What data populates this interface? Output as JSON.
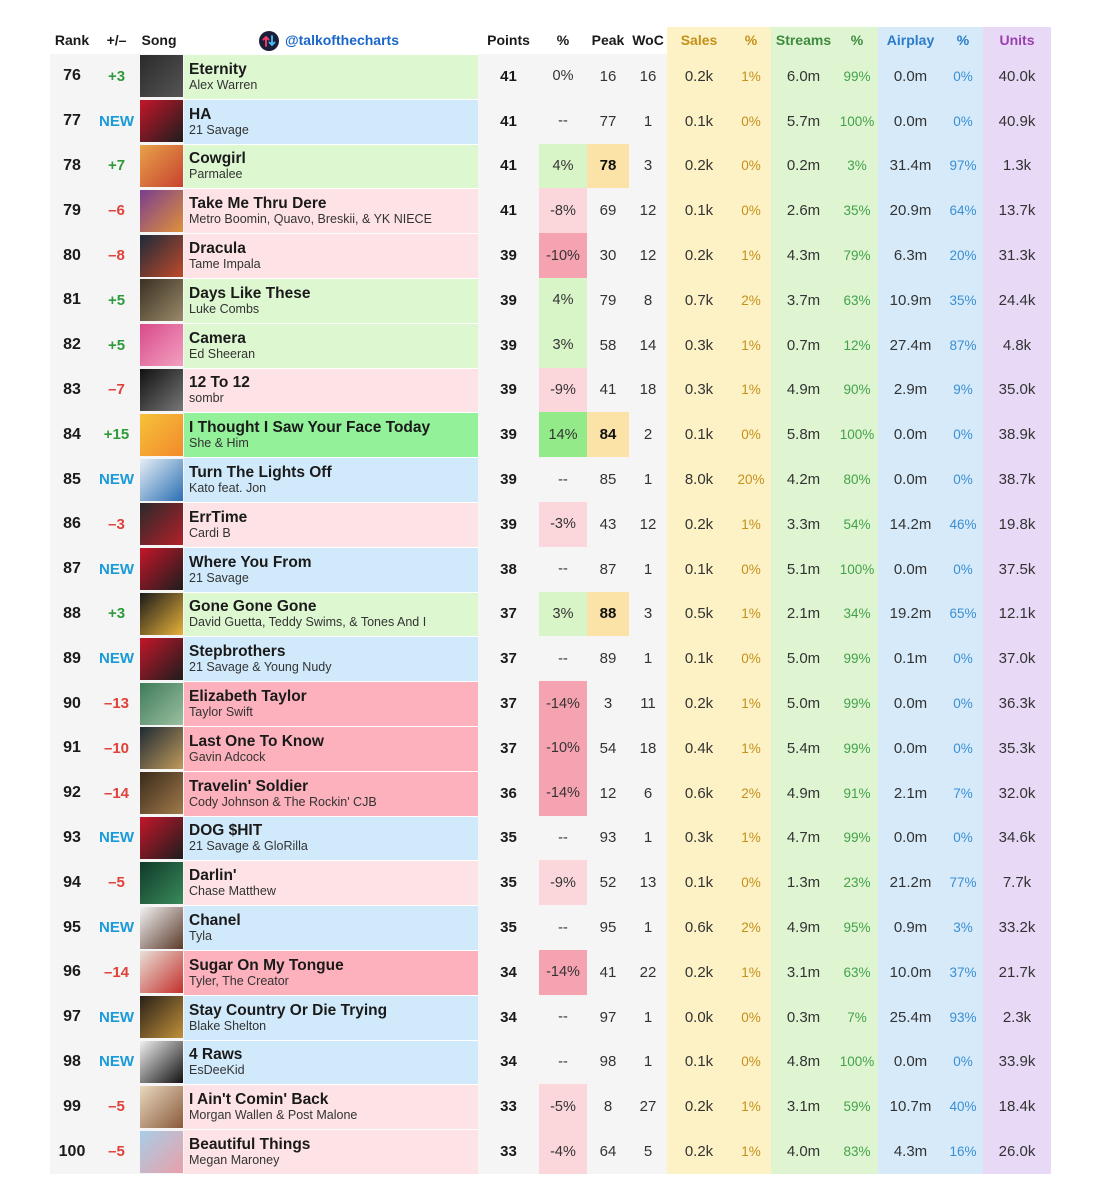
{
  "header": {
    "rank": "Rank",
    "move": "+/–",
    "song": "Song",
    "handle": "@talkofthecharts",
    "points": "Points",
    "pct": "%",
    "peak": "Peak",
    "woc": "WoC",
    "sales": "Sales",
    "sales_pct": "%",
    "streams": "Streams",
    "streams_pct": "%",
    "airplay": "Airplay",
    "airplay_pct": "%",
    "units": "Units"
  },
  "colors": {
    "song_up": "#ddf7d1",
    "song_new": "#d1eafb",
    "song_down": "#fde3e5",
    "song_big_up": "#93f19a",
    "song_big_down": "#fcb1bc",
    "pct_up": "#d7f5c7",
    "pct_up_strong": "#92ea88",
    "pct_down": "#fbd7dc",
    "pct_down_strong": "#f6a3b1",
    "move_up": "#2e9a3b",
    "move_down": "#e0413a",
    "move_new": "#1a9ad8",
    "peak_highlight": "#fbe2a6",
    "sales_bg": "#fdf2c6",
    "streams_bg": "#dff5d2",
    "airplay_bg": "#d6eafa",
    "units_bg": "#e8d9f7"
  },
  "chart_data": {
    "type": "table",
    "title": "",
    "columns": [
      "Rank",
      "+/–",
      "Song",
      "Points",
      "%",
      "Peak",
      "WoC",
      "Sales",
      "%",
      "Streams",
      "%",
      "Airplay",
      "%",
      "Units"
    ],
    "rows": [
      {
        "rank": "76",
        "move": "+3",
        "title": "Eternity",
        "artist": "Alex Warren",
        "points": "41",
        "pct": "0%",
        "peak": "16",
        "woc": "16",
        "sales": "0.2k",
        "sales_pct": "1%",
        "streams": "6.0m",
        "streams_pct": "99%",
        "airplay": "0.0m",
        "airplay_pct": "0%",
        "units": "40.0k",
        "song_tone": "up",
        "pct_tone": "none",
        "peak_hl": false,
        "art": [
          "#2a2a2a",
          "#555"
        ]
      },
      {
        "rank": "77",
        "move": "NEW",
        "title": "HA",
        "artist": "21 Savage",
        "points": "41",
        "pct": "--",
        "peak": "77",
        "woc": "1",
        "sales": "0.1k",
        "sales_pct": "0%",
        "streams": "5.7m",
        "streams_pct": "100%",
        "airplay": "0.0m",
        "airplay_pct": "0%",
        "units": "40.9k",
        "song_tone": "new",
        "pct_tone": "none",
        "peak_hl": false,
        "art": [
          "#c4162a",
          "#1d1d1d"
        ]
      },
      {
        "rank": "78",
        "move": "+7",
        "title": "Cowgirl",
        "artist": "Parmalee",
        "points": "41",
        "pct": "4%",
        "peak": "78",
        "woc": "3",
        "sales": "0.2k",
        "sales_pct": "0%",
        "streams": "0.2m",
        "streams_pct": "3%",
        "airplay": "31.4m",
        "airplay_pct": "97%",
        "units": "1.3k",
        "song_tone": "up",
        "pct_tone": "up",
        "peak_hl": true,
        "art": [
          "#e8a24a",
          "#c7422e"
        ]
      },
      {
        "rank": "79",
        "move": "–6",
        "title": "Take Me Thru Dere",
        "artist": "Metro Boomin, Quavo, Breskii, & YK NIECE",
        "points": "41",
        "pct": "-8%",
        "peak": "69",
        "woc": "12",
        "sales": "0.1k",
        "sales_pct": "0%",
        "streams": "2.6m",
        "streams_pct": "35%",
        "airplay": "20.9m",
        "airplay_pct": "64%",
        "units": "13.7k",
        "song_tone": "down",
        "pct_tone": "down",
        "peak_hl": false,
        "art": [
          "#7a3d8f",
          "#e0913a"
        ]
      },
      {
        "rank": "80",
        "move": "–8",
        "title": "Dracula",
        "artist": "Tame Impala",
        "points": "39",
        "pct": "-10%",
        "peak": "30",
        "woc": "12",
        "sales": "0.2k",
        "sales_pct": "1%",
        "streams": "4.3m",
        "streams_pct": "79%",
        "airplay": "6.3m",
        "airplay_pct": "20%",
        "units": "31.3k",
        "song_tone": "down",
        "pct_tone": "down_strong",
        "peak_hl": false,
        "art": [
          "#1c2a3a",
          "#c04a2a"
        ]
      },
      {
        "rank": "81",
        "move": "+5",
        "title": "Days Like These",
        "artist": "Luke Combs",
        "points": "39",
        "pct": "4%",
        "peak": "79",
        "woc": "8",
        "sales": "0.7k",
        "sales_pct": "2%",
        "streams": "3.7m",
        "streams_pct": "63%",
        "airplay": "10.9m",
        "airplay_pct": "35%",
        "units": "24.4k",
        "song_tone": "up",
        "pct_tone": "up",
        "peak_hl": false,
        "art": [
          "#3a3022",
          "#9a8a6a"
        ]
      },
      {
        "rank": "82",
        "move": "+5",
        "title": "Camera",
        "artist": "Ed Sheeran",
        "points": "39",
        "pct": "3%",
        "peak": "58",
        "woc": "14",
        "sales": "0.3k",
        "sales_pct": "1%",
        "streams": "0.7m",
        "streams_pct": "12%",
        "airplay": "27.4m",
        "airplay_pct": "87%",
        "units": "4.8k",
        "song_tone": "up",
        "pct_tone": "up",
        "peak_hl": false,
        "art": [
          "#d94a8a",
          "#f2a0c0"
        ]
      },
      {
        "rank": "83",
        "move": "–7",
        "title": "12 To 12",
        "artist": "sombr",
        "points": "39",
        "pct": "-9%",
        "peak": "41",
        "woc": "18",
        "sales": "0.3k",
        "sales_pct": "1%",
        "streams": "4.9m",
        "streams_pct": "90%",
        "airplay": "2.9m",
        "airplay_pct": "9%",
        "units": "35.0k",
        "song_tone": "down",
        "pct_tone": "down",
        "peak_hl": false,
        "art": [
          "#111111",
          "#777777"
        ]
      },
      {
        "rank": "84",
        "move": "+15",
        "title": "I Thought I Saw Your Face Today",
        "artist": "She & Him",
        "points": "39",
        "pct": "14%",
        "peak": "84",
        "woc": "2",
        "sales": "0.1k",
        "sales_pct": "0%",
        "streams": "5.8m",
        "streams_pct": "100%",
        "airplay": "0.0m",
        "airplay_pct": "0%",
        "units": "38.9k",
        "song_tone": "big_up",
        "pct_tone": "up_strong",
        "peak_hl": true,
        "art": [
          "#f5c23a",
          "#f28a2a"
        ]
      },
      {
        "rank": "85",
        "move": "NEW",
        "title": "Turn The Lights Off",
        "artist": "Kato feat. Jon",
        "points": "39",
        "pct": "--",
        "peak": "85",
        "woc": "1",
        "sales": "8.0k",
        "sales_pct": "20%",
        "streams": "4.2m",
        "streams_pct": "80%",
        "airplay": "0.0m",
        "airplay_pct": "0%",
        "units": "38.7k",
        "song_tone": "new",
        "pct_tone": "none",
        "peak_hl": false,
        "art": [
          "#e6eef5",
          "#2a6fb3"
        ]
      },
      {
        "rank": "86",
        "move": "–3",
        "title": "ErrTime",
        "artist": "Cardi B",
        "points": "39",
        "pct": "-3%",
        "peak": "43",
        "woc": "12",
        "sales": "0.2k",
        "sales_pct": "1%",
        "streams": "3.3m",
        "streams_pct": "54%",
        "airplay": "14.2m",
        "airplay_pct": "46%",
        "units": "19.8k",
        "song_tone": "down",
        "pct_tone": "down",
        "peak_hl": false,
        "art": [
          "#2a2a2a",
          "#b3202a"
        ]
      },
      {
        "rank": "87",
        "move": "NEW",
        "title": "Where You From",
        "artist": "21 Savage",
        "points": "38",
        "pct": "--",
        "peak": "87",
        "woc": "1",
        "sales": "0.1k",
        "sales_pct": "0%",
        "streams": "5.1m",
        "streams_pct": "100%",
        "airplay": "0.0m",
        "airplay_pct": "0%",
        "units": "37.5k",
        "song_tone": "new",
        "pct_tone": "none",
        "peak_hl": false,
        "art": [
          "#c4162a",
          "#1d1d1d"
        ]
      },
      {
        "rank": "88",
        "move": "+3",
        "title": "Gone Gone Gone",
        "artist": "David Guetta, Teddy Swims, & Tones And I",
        "points": "37",
        "pct": "3%",
        "peak": "88",
        "woc": "3",
        "sales": "0.5k",
        "sales_pct": "1%",
        "streams": "2.1m",
        "streams_pct": "34%",
        "airplay": "19.2m",
        "airplay_pct": "65%",
        "units": "12.1k",
        "song_tone": "up",
        "pct_tone": "up",
        "peak_hl": true,
        "art": [
          "#1a1a1a",
          "#e8b23a"
        ]
      },
      {
        "rank": "89",
        "move": "NEW",
        "title": "Stepbrothers",
        "artist": "21 Savage & Young Nudy",
        "points": "37",
        "pct": "--",
        "peak": "89",
        "woc": "1",
        "sales": "0.1k",
        "sales_pct": "0%",
        "streams": "5.0m",
        "streams_pct": "99%",
        "airplay": "0.1m",
        "airplay_pct": "0%",
        "units": "37.0k",
        "song_tone": "new",
        "pct_tone": "none",
        "peak_hl": false,
        "art": [
          "#c4162a",
          "#1d1d1d"
        ]
      },
      {
        "rank": "90",
        "move": "–13",
        "title": "Elizabeth Taylor",
        "artist": "Taylor Swift",
        "points": "37",
        "pct": "-14%",
        "peak": "3",
        "woc": "11",
        "sales": "0.2k",
        "sales_pct": "1%",
        "streams": "5.0m",
        "streams_pct": "99%",
        "airplay": "0.0m",
        "airplay_pct": "0%",
        "units": "36.3k",
        "song_tone": "big_down",
        "pct_tone": "down_strong",
        "peak_hl": false,
        "art": [
          "#3f7a5a",
          "#9ac0a0"
        ]
      },
      {
        "rank": "91",
        "move": "–10",
        "title": "Last One To Know",
        "artist": "Gavin Adcock",
        "points": "37",
        "pct": "-10%",
        "peak": "54",
        "woc": "18",
        "sales": "0.4k",
        "sales_pct": "1%",
        "streams": "5.4m",
        "streams_pct": "99%",
        "airplay": "0.0m",
        "airplay_pct": "0%",
        "units": "35.3k",
        "song_tone": "big_down",
        "pct_tone": "down_strong",
        "peak_hl": false,
        "art": [
          "#1e2a34",
          "#c09a5a"
        ]
      },
      {
        "rank": "92",
        "move": "–14",
        "title": "Travelin' Soldier",
        "artist": "Cody Johnson & The Rockin' CJB",
        "points": "36",
        "pct": "-14%",
        "peak": "12",
        "woc": "6",
        "sales": "0.6k",
        "sales_pct": "2%",
        "streams": "4.9m",
        "streams_pct": "91%",
        "airplay": "2.1m",
        "airplay_pct": "7%",
        "units": "32.0k",
        "song_tone": "big_down",
        "pct_tone": "down_strong",
        "peak_hl": false,
        "art": [
          "#3a2a1a",
          "#a07a4a"
        ]
      },
      {
        "rank": "93",
        "move": "NEW",
        "title": "DOG $HIT",
        "artist": "21 Savage & GloRilla",
        "points": "35",
        "pct": "--",
        "peak": "93",
        "woc": "1",
        "sales": "0.3k",
        "sales_pct": "1%",
        "streams": "4.7m",
        "streams_pct": "99%",
        "airplay": "0.0m",
        "airplay_pct": "0%",
        "units": "34.6k",
        "song_tone": "new",
        "pct_tone": "none",
        "peak_hl": false,
        "art": [
          "#c4162a",
          "#1d1d1d"
        ]
      },
      {
        "rank": "94",
        "move": "–5",
        "title": "Darlin'",
        "artist": "Chase Matthew",
        "points": "35",
        "pct": "-9%",
        "peak": "52",
        "woc": "13",
        "sales": "0.1k",
        "sales_pct": "0%",
        "streams": "1.3m",
        "streams_pct": "23%",
        "airplay": "21.2m",
        "airplay_pct": "77%",
        "units": "7.7k",
        "song_tone": "down",
        "pct_tone": "down",
        "peak_hl": false,
        "art": [
          "#0f3a2a",
          "#3a8a5a"
        ]
      },
      {
        "rank": "95",
        "move": "NEW",
        "title": "Chanel",
        "artist": "Tyla",
        "points": "35",
        "pct": "--",
        "peak": "95",
        "woc": "1",
        "sales": "0.6k",
        "sales_pct": "2%",
        "streams": "4.9m",
        "streams_pct": "95%",
        "airplay": "0.9m",
        "airplay_pct": "3%",
        "units": "33.2k",
        "song_tone": "new",
        "pct_tone": "none",
        "peak_hl": false,
        "art": [
          "#f2f2f2",
          "#5a3a2a"
        ]
      },
      {
        "rank": "96",
        "move": "–14",
        "title": "Sugar On My Tongue",
        "artist": "Tyler, The Creator",
        "points": "34",
        "pct": "-14%",
        "peak": "41",
        "woc": "22",
        "sales": "0.2k",
        "sales_pct": "1%",
        "streams": "3.1m",
        "streams_pct": "63%",
        "airplay": "10.0m",
        "airplay_pct": "37%",
        "units": "21.7k",
        "song_tone": "big_down",
        "pct_tone": "down_strong",
        "peak_hl": false,
        "art": [
          "#e8e0d8",
          "#c4302a"
        ]
      },
      {
        "rank": "97",
        "move": "NEW",
        "title": "Stay Country Or Die Trying",
        "artist": "Blake Shelton",
        "points": "34",
        "pct": "--",
        "peak": "97",
        "woc": "1",
        "sales": "0.0k",
        "sales_pct": "0%",
        "streams": "0.3m",
        "streams_pct": "7%",
        "airplay": "25.4m",
        "airplay_pct": "93%",
        "units": "2.3k",
        "song_tone": "new",
        "pct_tone": "none",
        "peak_hl": false,
        "art": [
          "#2a2018",
          "#c0903a"
        ]
      },
      {
        "rank": "98",
        "move": "NEW",
        "title": "4 Raws",
        "artist": "EsDeeKid",
        "points": "34",
        "pct": "--",
        "peak": "98",
        "woc": "1",
        "sales": "0.1k",
        "sales_pct": "0%",
        "streams": "4.8m",
        "streams_pct": "100%",
        "airplay": "0.0m",
        "airplay_pct": "0%",
        "units": "33.9k",
        "song_tone": "new",
        "pct_tone": "none",
        "peak_hl": false,
        "art": [
          "#f0f0f0",
          "#111111"
        ]
      },
      {
        "rank": "99",
        "move": "–5",
        "title": "I Ain't Comin' Back",
        "artist": "Morgan Wallen & Post Malone",
        "points": "33",
        "pct": "-5%",
        "peak": "8",
        "woc": "27",
        "sales": "0.2k",
        "sales_pct": "1%",
        "streams": "3.1m",
        "streams_pct": "59%",
        "airplay": "10.7m",
        "airplay_pct": "40%",
        "units": "18.4k",
        "song_tone": "down",
        "pct_tone": "down",
        "peak_hl": false,
        "art": [
          "#e8d8c0",
          "#8a5a3a"
        ]
      },
      {
        "rank": "100",
        "move": "–5",
        "title": "Beautiful Things",
        "artist": "Megan Maroney",
        "points": "33",
        "pct": "-4%",
        "peak": "64",
        "woc": "5",
        "sales": "0.2k",
        "sales_pct": "1%",
        "streams": "4.0m",
        "streams_pct": "83%",
        "airplay": "4.3m",
        "airplay_pct": "16%",
        "units": "26.0k",
        "song_tone": "down",
        "pct_tone": "down",
        "peak_hl": false,
        "art": [
          "#a8cde8",
          "#e8a0a8"
        ]
      }
    ]
  }
}
